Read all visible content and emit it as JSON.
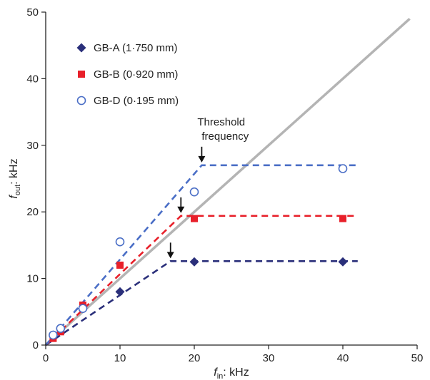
{
  "chart_data": {
    "type": "scatter",
    "xlim": [
      0,
      50
    ],
    "ylim": [
      0,
      50
    ],
    "x_ticks": [
      0,
      10,
      20,
      30,
      40,
      50
    ],
    "y_ticks": [
      0,
      10,
      20,
      30,
      40,
      50
    ],
    "xlabel": {
      "main": "f",
      "sub": "in",
      "rest": ": kHz"
    },
    "ylabel": {
      "main": "f",
      "sub": "out",
      "rest": ": kHz"
    },
    "grid": false,
    "legend_position": "top-left",
    "identity_line": {
      "points": [
        [
          0,
          0
        ],
        [
          49,
          49
        ]
      ],
      "color": "#b4b4b4"
    },
    "series": [
      {
        "name": "GB-A (1·750 mm)",
        "marker": "diamond",
        "color": "#2a2f7a",
        "points": [
          [
            1,
            1.5
          ],
          [
            2,
            2.5
          ],
          [
            5,
            5.5
          ],
          [
            10,
            8
          ],
          [
            20,
            12.5
          ],
          [
            40,
            12.5
          ]
        ],
        "fit_line": [
          [
            0,
            0
          ],
          [
            16.8,
            12.6
          ],
          [
            42,
            12.6
          ]
        ]
      },
      {
        "name": "GB-B (0·920 mm)",
        "marker": "square",
        "color": "#e8202a",
        "points": [
          [
            1,
            1
          ],
          [
            2,
            2
          ],
          [
            5,
            6
          ],
          [
            10,
            12
          ],
          [
            20,
            19
          ],
          [
            40,
            19
          ]
        ],
        "fit_line": [
          [
            0,
            0
          ],
          [
            18.2,
            19.4
          ],
          [
            42,
            19.4
          ]
        ]
      },
      {
        "name": "GB-D (0·195 mm)",
        "marker": "circle-open",
        "color": "#4a6ec6",
        "points": [
          [
            1,
            1.5
          ],
          [
            2,
            2.5
          ],
          [
            5,
            5.5
          ],
          [
            10,
            15.5
          ],
          [
            20,
            23
          ],
          [
            40,
            26.5
          ]
        ],
        "fit_line": [
          [
            0,
            0
          ],
          [
            21,
            27
          ],
          [
            42,
            27
          ]
        ]
      }
    ],
    "annotations": [
      {
        "lines": [
          "Threshold",
          "frequency"
        ],
        "arrow_to": [
          21,
          27
        ]
      }
    ],
    "threshold_arrows": [
      [
        21,
        27
      ],
      [
        18.2,
        19.4
      ],
      [
        16.8,
        12.6
      ]
    ]
  }
}
